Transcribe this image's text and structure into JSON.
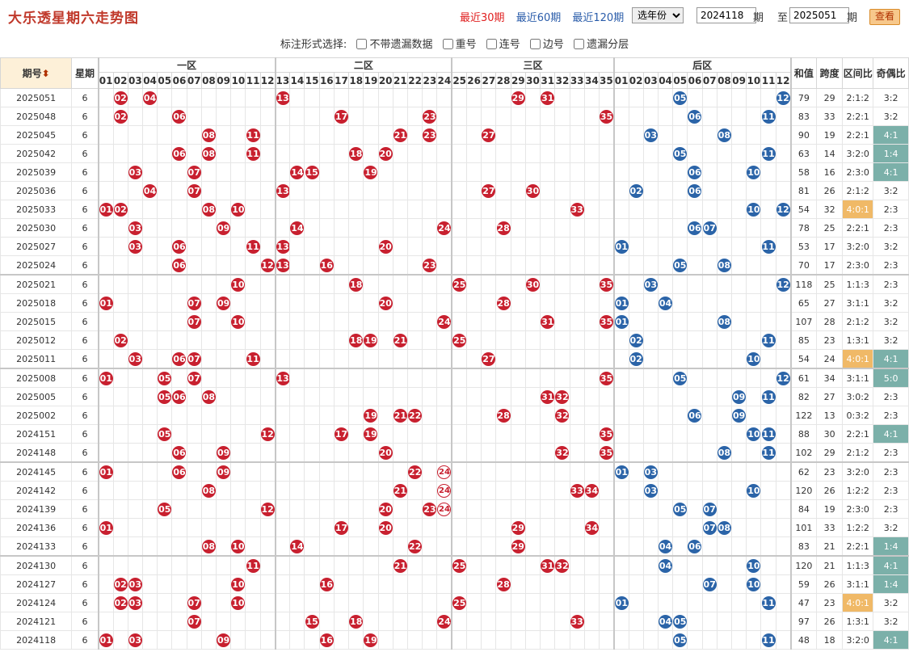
{
  "header": {
    "title": "大乐透星期六走势图",
    "periods": [
      "最近30期",
      "最近60期",
      "最近120期"
    ],
    "active_period": 0,
    "year_select": "选年份",
    "from": "2024118",
    "qi1": "期",
    "to_label": "至",
    "to": "2025051",
    "qi2": "期",
    "query_btn": "查看"
  },
  "options": {
    "label": "标注形式选择:",
    "items": [
      "不带遗漏数据",
      "重号",
      "连号",
      "边号",
      "遗漏分层"
    ]
  },
  "columns": {
    "period": "期号",
    "week": "星期",
    "zone1": "一区",
    "zone2": "二区",
    "zone3": "三区",
    "back": "后区",
    "sum": "和值",
    "span": "跨度",
    "zone_ratio": "区间比",
    "odd_even": "奇偶比",
    "zone1_nums": [
      "01",
      "02",
      "03",
      "04",
      "05",
      "06",
      "07",
      "08",
      "09",
      "10",
      "11",
      "12"
    ],
    "zone2_nums": [
      "13",
      "14",
      "15",
      "16",
      "17",
      "18",
      "19",
      "20",
      "21",
      "22",
      "23",
      "24"
    ],
    "zone3_nums": [
      "25",
      "26",
      "27",
      "28",
      "29",
      "30",
      "31",
      "32",
      "33",
      "34",
      "35"
    ],
    "back_nums": [
      "01",
      "02",
      "03",
      "04",
      "05",
      "06",
      "07",
      "08",
      "09",
      "10",
      "11",
      "12"
    ]
  },
  "rows": [
    {
      "p": "2025051",
      "w": "6",
      "f": [
        2,
        4,
        13,
        29,
        31
      ],
      "b": [
        5,
        12
      ],
      "s": "79",
      "sp": "29",
      "zr": "2:1:2",
      "oe": "3:2"
    },
    {
      "p": "2025048",
      "w": "6",
      "f": [
        2,
        6,
        17,
        23,
        35
      ],
      "b": [
        6,
        11
      ],
      "s": "83",
      "sp": "33",
      "zr": "2:2:1",
      "oe": "3:2"
    },
    {
      "p": "2025045",
      "w": "6",
      "f": [
        8,
        11,
        21,
        23,
        27
      ],
      "b": [
        3,
        8
      ],
      "s": "90",
      "sp": "19",
      "zr": "2:2:1",
      "oe": "4:1",
      "oeh": "t"
    },
    {
      "p": "2025042",
      "w": "6",
      "f": [
        6,
        8,
        11,
        18,
        20
      ],
      "b": [
        5,
        11
      ],
      "s": "63",
      "sp": "14",
      "zr": "3:2:0",
      "oe": "1:4",
      "oeh": "t"
    },
    {
      "p": "2025039",
      "w": "6",
      "f": [
        3,
        7,
        14,
        15,
        19
      ],
      "b": [
        6,
        10
      ],
      "s": "58",
      "sp": "16",
      "zr": "2:3:0",
      "oe": "4:1",
      "oeh": "t"
    },
    {
      "p": "2025036",
      "w": "6",
      "f": [
        4,
        7,
        13,
        27,
        30
      ],
      "b": [
        2,
        6
      ],
      "s": "81",
      "sp": "26",
      "zr": "2:1:2",
      "oe": "3:2"
    },
    {
      "p": "2025033",
      "w": "6",
      "f": [
        1,
        2,
        8,
        10,
        33
      ],
      "b": [
        10,
        12
      ],
      "s": "54",
      "sp": "32",
      "zr": "4:0:1",
      "zrh": "h",
      "oe": "2:3"
    },
    {
      "p": "2025030",
      "w": "6",
      "f": [
        3,
        9,
        14,
        24,
        28
      ],
      "b": [
        6,
        7
      ],
      "s": "78",
      "sp": "25",
      "zr": "2:2:1",
      "oe": "2:3"
    },
    {
      "p": "2025027",
      "w": "6",
      "f": [
        3,
        6,
        11,
        13,
        20
      ],
      "b": [
        1,
        11
      ],
      "s": "53",
      "sp": "17",
      "zr": "3:2:0",
      "oe": "3:2"
    },
    {
      "p": "2025024",
      "w": "6",
      "f": [
        6,
        12,
        13,
        16,
        23
      ],
      "b": [
        5,
        8
      ],
      "s": "70",
      "sp": "17",
      "zr": "2:3:0",
      "oe": "2:3"
    },
    {
      "p": "2025021",
      "w": "6",
      "f": [
        10,
        18,
        25,
        30,
        35
      ],
      "b": [
        3,
        12
      ],
      "s": "118",
      "sp": "25",
      "zr": "1:1:3",
      "oe": "2:3",
      "gap": 1
    },
    {
      "p": "2025018",
      "w": "6",
      "f": [
        1,
        7,
        9,
        20,
        28
      ],
      "b": [
        1,
        4
      ],
      "s": "65",
      "sp": "27",
      "zr": "3:1:1",
      "oe": "3:2"
    },
    {
      "p": "2025015",
      "w": "6",
      "f": [
        7,
        10,
        24,
        31,
        35
      ],
      "b": [
        1,
        8
      ],
      "s": "107",
      "sp": "28",
      "zr": "2:1:2",
      "oe": "3:2"
    },
    {
      "p": "2025012",
      "w": "6",
      "f": [
        2,
        18,
        19,
        21,
        25
      ],
      "b": [
        2,
        11
      ],
      "s": "85",
      "sp": "23",
      "zr": "1:3:1",
      "oe": "3:2"
    },
    {
      "p": "2025011",
      "w": "6",
      "f": [
        3,
        6,
        7,
        11,
        27
      ],
      "b": [
        2,
        10
      ],
      "s": "54",
      "sp": "24",
      "zr": "4:0:1",
      "zrh": "h",
      "oe": "4:1",
      "oeh": "t"
    },
    {
      "p": "2025008",
      "w": "6",
      "f": [
        1,
        5,
        7,
        13,
        35
      ],
      "b": [
        5,
        12
      ],
      "s": "61",
      "sp": "34",
      "zr": "3:1:1",
      "oe": "5:0",
      "oeh": "t",
      "gap": 1
    },
    {
      "p": "2025005",
      "w": "6",
      "f": [
        5,
        6,
        8,
        31,
        32
      ],
      "b": [
        9,
        11
      ],
      "s": "82",
      "sp": "27",
      "zr": "3:0:2",
      "oe": "2:3"
    },
    {
      "p": "2025002",
      "w": "6",
      "f": [
        19,
        21,
        22,
        28,
        32
      ],
      "b": [
        6,
        9
      ],
      "s": "122",
      "sp": "13",
      "zr": "0:3:2",
      "oe": "2:3"
    },
    {
      "p": "2024151",
      "w": "6",
      "f": [
        5,
        12,
        17,
        19,
        35
      ],
      "b": [
        10,
        11
      ],
      "s": "88",
      "sp": "30",
      "zr": "2:2:1",
      "oe": "4:1",
      "oeh": "t"
    },
    {
      "p": "2024148",
      "w": "6",
      "f": [
        6,
        9,
        20,
        32,
        35
      ],
      "b": [
        8,
        11
      ],
      "s": "102",
      "sp": "29",
      "zr": "2:1:2",
      "oe": "2:3"
    },
    {
      "p": "2024145",
      "w": "6",
      "f": [
        1,
        6,
        9,
        22
      ],
      "fr": [
        24
      ],
      "b": [
        1,
        3
      ],
      "s": "62",
      "sp": "23",
      "zr": "3:2:0",
      "oe": "2:3",
      "gap": 1
    },
    {
      "p": "2024142",
      "w": "6",
      "f": [
        8,
        21,
        33,
        34
      ],
      "fr": [
        24
      ],
      "b": [
        3,
        10
      ],
      "s": "120",
      "sp": "26",
      "zr": "1:2:2",
      "oe": "2:3"
    },
    {
      "p": "2024139",
      "w": "6",
      "f": [
        5,
        12,
        20,
        23
      ],
      "fr": [
        24
      ],
      "b": [
        5,
        7
      ],
      "s": "84",
      "sp": "19",
      "zr": "2:3:0",
      "oe": "2:3"
    },
    {
      "p": "2024136",
      "w": "6",
      "f": [
        1,
        17,
        20,
        29,
        34
      ],
      "b": [
        7,
        8
      ],
      "s": "101",
      "sp": "33",
      "zr": "1:2:2",
      "oe": "3:2"
    },
    {
      "p": "2024133",
      "w": "6",
      "f": [
        8,
        10,
        14,
        22,
        29
      ],
      "b": [
        4,
        6
      ],
      "s": "83",
      "sp": "21",
      "zr": "2:2:1",
      "oe": "1:4",
      "oeh": "t"
    },
    {
      "p": "2024130",
      "w": "6",
      "f": [
        11,
        21,
        25,
        31,
        32
      ],
      "b": [
        4,
        10
      ],
      "s": "120",
      "sp": "21",
      "zr": "1:1:3",
      "oe": "4:1",
      "oeh": "t",
      "gap": 1
    },
    {
      "p": "2024127",
      "w": "6",
      "f": [
        2,
        3,
        10,
        16,
        28
      ],
      "b": [
        7,
        10
      ],
      "s": "59",
      "sp": "26",
      "zr": "3:1:1",
      "oe": "1:4",
      "oeh": "t"
    },
    {
      "p": "2024124",
      "w": "6",
      "f": [
        2,
        3,
        7,
        10,
        25
      ],
      "b": [
        1,
        11
      ],
      "s": "47",
      "sp": "23",
      "zr": "4:0:1",
      "zrh": "h",
      "oe": "3:2"
    },
    {
      "p": "2024121",
      "w": "6",
      "f": [
        7,
        15,
        18,
        24,
        33
      ],
      "b": [
        4,
        5
      ],
      "s": "97",
      "sp": "26",
      "zr": "1:3:1",
      "oe": "3:2"
    },
    {
      "p": "2024118",
      "w": "6",
      "f": [
        1,
        3,
        9,
        16,
        19
      ],
      "b": [
        5,
        11
      ],
      "s": "48",
      "sp": "18",
      "zr": "3:2:0",
      "oe": "4:1",
      "oeh": "t"
    }
  ]
}
